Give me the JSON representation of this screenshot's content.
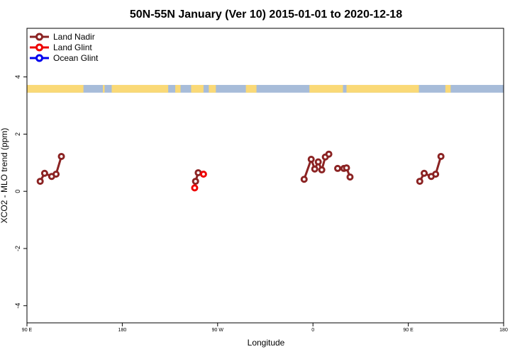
{
  "chart_data": {
    "type": "line",
    "title": "50N-55N January (Ver 10)   2015-01-01 to 2020-12-18",
    "xlabel": "Longitude",
    "ylabel": "XCO2 - MLO trend (ppm)",
    "xlim": [
      -90,
      180
    ],
    "ylim": [
      -4.6,
      5.7
    ],
    "xticks": [
      {
        "value": -90,
        "label": "90 E"
      },
      {
        "value": -36,
        "label": "180"
      },
      {
        "value": 18,
        "label": "90 W"
      },
      {
        "value": 72,
        "label": "0"
      },
      {
        "value": 126,
        "label": "90 E"
      },
      {
        "value": 180,
        "label": "180"
      }
    ],
    "yticks": [
      -4,
      -2,
      0,
      2,
      4
    ],
    "legend_position": "top-left",
    "colors": {
      "land_nadir": "#8b2323",
      "land_glint": "#ee0000",
      "ocean_glint": "#0000ee",
      "map_land": "#fad977",
      "map_ocean": "#a7bcd9"
    },
    "series": [
      {
        "name": "Land Nadir",
        "color": "#8b2323",
        "segments": [
          [
            [
              -82.5,
              0.35
            ],
            [
              -80,
              0.63
            ],
            [
              -76,
              0.52
            ],
            [
              -73.5,
              0.6
            ],
            [
              -70.5,
              1.22
            ]
          ],
          [
            [
              5.5,
              0.35
            ],
            [
              7,
              0.65
            ]
          ],
          [
            [
              67,
              0.42
            ],
            [
              71,
              1.12
            ],
            [
              73,
              0.78
            ],
            [
              75,
              1.03
            ],
            [
              77,
              0.75
            ],
            [
              79,
              1.2
            ],
            [
              81,
              1.3
            ]
          ],
          [
            [
              86,
              0.8
            ],
            [
              89.5,
              0.8
            ],
            [
              91,
              0.82
            ],
            [
              93,
              0.5
            ]
          ],
          [
            [
              132.5,
              0.35
            ],
            [
              135,
              0.63
            ],
            [
              139,
              0.52
            ],
            [
              141.5,
              0.6
            ],
            [
              144.5,
              1.22
            ]
          ]
        ]
      },
      {
        "name": "Land Glint",
        "color": "#ee0000",
        "segments": [
          [
            [
              5,
              0.12
            ]
          ],
          [
            [
              10,
              0.6
            ]
          ]
        ]
      },
      {
        "name": "Ocean Glint",
        "color": "#0000ee",
        "segments": []
      }
    ],
    "map_strip": {
      "y_range": [
        3.45,
        3.72
      ],
      "land_intervals": [
        [
          -90,
          -58
        ],
        [
          -47,
          -46
        ],
        [
          -42,
          -10
        ],
        [
          -6,
          -3
        ],
        [
          3,
          10
        ],
        [
          13,
          17
        ],
        [
          34,
          40
        ],
        [
          70,
          89
        ],
        [
          91,
          132
        ],
        [
          147,
          150
        ]
      ]
    }
  }
}
